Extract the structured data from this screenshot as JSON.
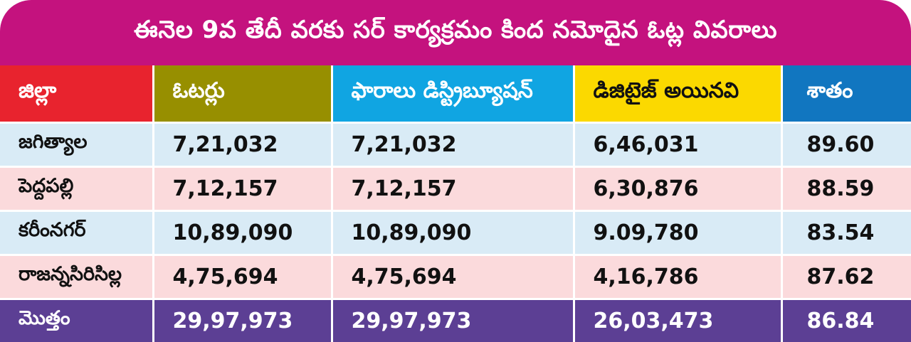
{
  "title": "ఈనెల 9వ తేదీ వరకు సర్ కార్యక్రమం కింద నమోదైన ఓట్ల వివరాలు",
  "colors": {
    "title_bg": "#c4127e",
    "header_district": "#e8232e",
    "header_voters": "#978f00",
    "header_forms": "#10a5e2",
    "header_digitized": "#fbd900",
    "header_percent": "#1176c0",
    "row_blue": "#d9ebf6",
    "row_pink": "#fbdadc",
    "total_bg": "#5c3f94"
  },
  "table": {
    "headers": [
      "జిల్లా",
      "ఓటర్లు",
      "ఫారాలు డిస్ట్రిబ్యూషన్",
      "డిజిటైజ్ అయినవి",
      "శాతం"
    ],
    "rows": [
      [
        "జగిత్యాల",
        "7,21,032",
        "7,21,032",
        "6,46,031",
        "89.60"
      ],
      [
        "పెద్దపల్లి",
        "7,12,157",
        "7,12,157",
        "6,30,876",
        "88.59"
      ],
      [
        "కరీంనగర్",
        "10,89,090",
        "10,89,090",
        "9.09,780",
        "83.54"
      ],
      [
        "రాజన్నసిరిసిల్ల",
        "4,75,694",
        "4,75,694",
        "4,16,786",
        "87.62"
      ]
    ],
    "total": [
      "మొత్తం",
      "29,97,973",
      "29,97,973",
      "26,03,473",
      "86.84"
    ]
  }
}
